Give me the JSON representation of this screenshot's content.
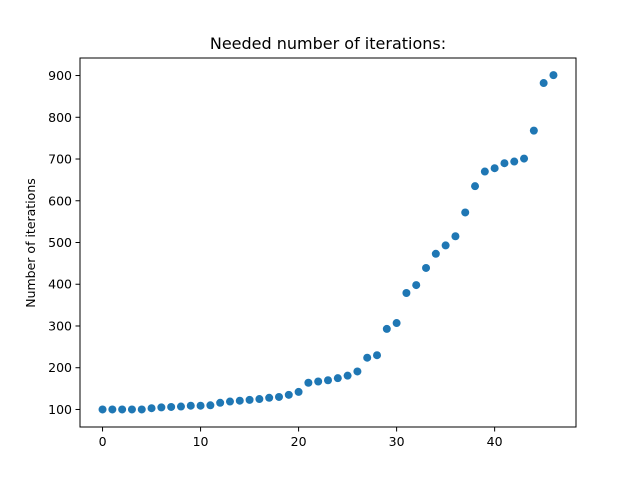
{
  "chart_data": {
    "type": "scatter",
    "title": "Needed number of iterations:",
    "xlabel": "",
    "ylabel": "Number of iterations",
    "xlim": [
      -2.3,
      48.3
    ],
    "ylim": [
      58,
      942
    ],
    "xticks": [
      0,
      10,
      20,
      30,
      40
    ],
    "yticks": [
      100,
      200,
      300,
      400,
      500,
      600,
      700,
      800,
      900
    ],
    "grid": false,
    "legend": "none",
    "marker_color": "#1f77b4",
    "x": [
      0,
      1,
      2,
      3,
      4,
      5,
      6,
      7,
      8,
      9,
      10,
      11,
      12,
      13,
      14,
      15,
      16,
      17,
      18,
      19,
      20,
      21,
      22,
      23,
      24,
      25,
      26,
      27,
      28,
      29,
      30,
      31,
      32,
      33,
      34,
      35,
      36,
      37,
      38,
      39,
      40,
      41,
      42,
      43,
      44,
      45,
      46
    ],
    "y": [
      100,
      100,
      100,
      100,
      100,
      103,
      105,
      106,
      107,
      109,
      109,
      110,
      116,
      119,
      121,
      123,
      125,
      128,
      130,
      135,
      142,
      164,
      167,
      170,
      175,
      181,
      191,
      224,
      230,
      293,
      307,
      379,
      398,
      439,
      473,
      493,
      515,
      572,
      635,
      670,
      678,
      690,
      694,
      701,
      768,
      882,
      901
    ]
  }
}
